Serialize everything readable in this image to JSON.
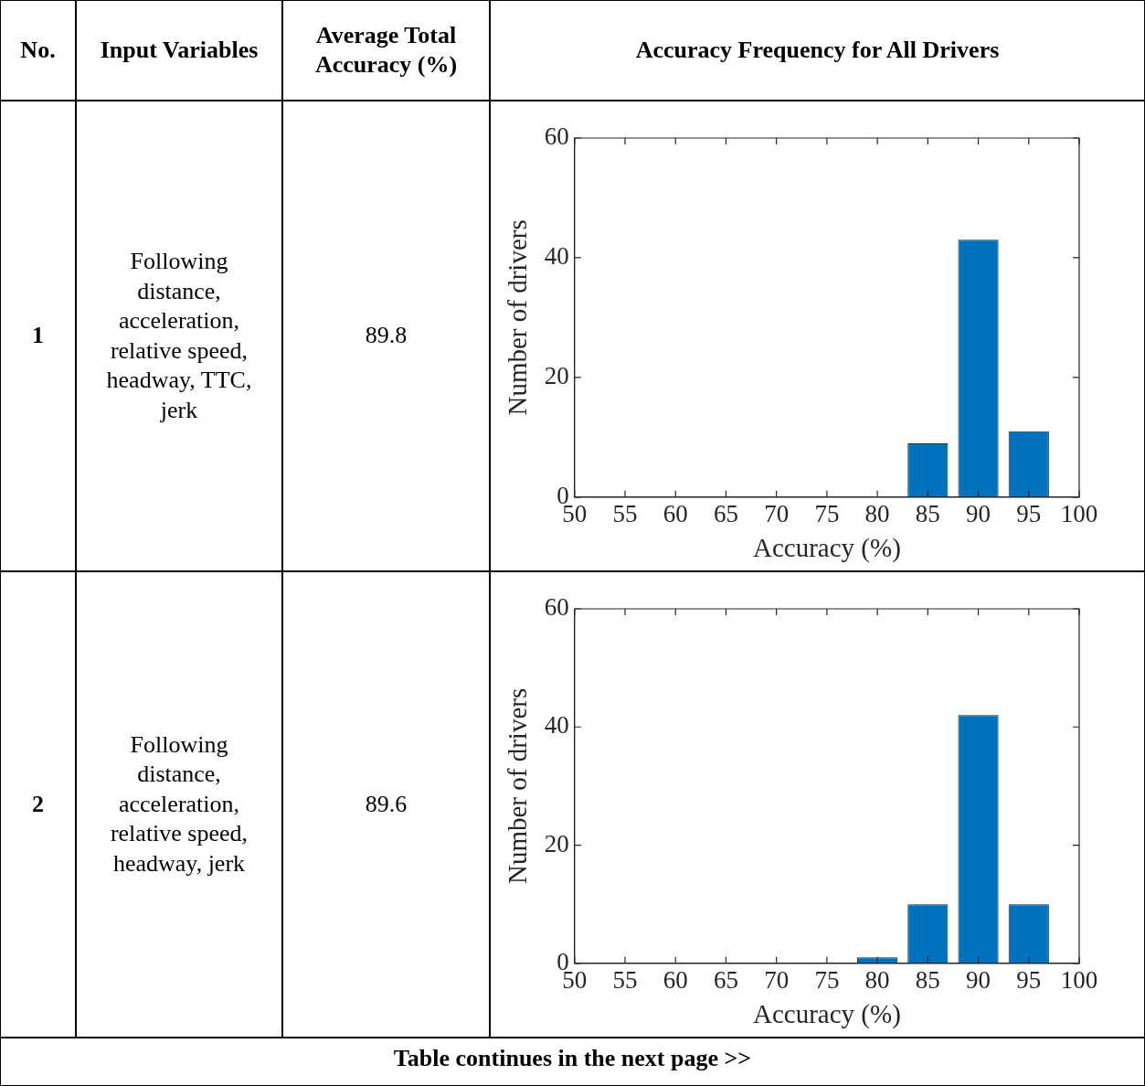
{
  "chart_data": [
    {
      "type": "other",
      "annotations": [
        "No.",
        "Input Variables",
        "Average Total Accuracy (%)",
        "Accuracy Frequency for All Drivers"
      ]
    },
    {
      "type": "other",
      "annotations": [
        "1",
        "Following distance, acceleration, relative speed, headway, TTC, jerk",
        "89.8"
      ]
    },
    {
      "type": "bar",
      "x": [
        55,
        60,
        65,
        70,
        75,
        80,
        85,
        90,
        95
      ],
      "values": [
        0,
        0,
        0,
        0,
        0,
        0,
        9,
        43,
        11
      ],
      "color": "#0072bd",
      "xlim": [
        50,
        100
      ],
      "xticks": [
        50,
        55,
        60,
        65,
        70,
        75,
        80,
        85,
        90,
        95,
        100
      ],
      "ylim": [
        0,
        60
      ],
      "yticks": [
        0,
        20,
        40,
        60
      ],
      "xlabel": "Accuracy (%)",
      "ylabel": "Number of drivers"
    },
    {
      "type": "other",
      "annotations": [
        "2",
        "Following distance, acceleration, relative speed, headway, jerk",
        "89.6"
      ]
    },
    {
      "type": "bar",
      "x": [
        55,
        60,
        65,
        70,
        75,
        80,
        85,
        90,
        95
      ],
      "values": [
        0,
        0,
        0,
        0,
        0,
        1,
        10,
        42,
        10
      ],
      "color": "#0072bd",
      "xlim": [
        50,
        100
      ],
      "xticks": [
        50,
        55,
        60,
        65,
        70,
        75,
        80,
        85,
        90,
        95,
        100
      ],
      "ylim": [
        0,
        60
      ],
      "yticks": [
        0,
        20,
        40,
        60
      ],
      "xlabel": "Accuracy (%)",
      "ylabel": "Number of drivers"
    },
    {
      "type": "other",
      "annotations": [
        "Table continues in the next page >>"
      ]
    }
  ]
}
